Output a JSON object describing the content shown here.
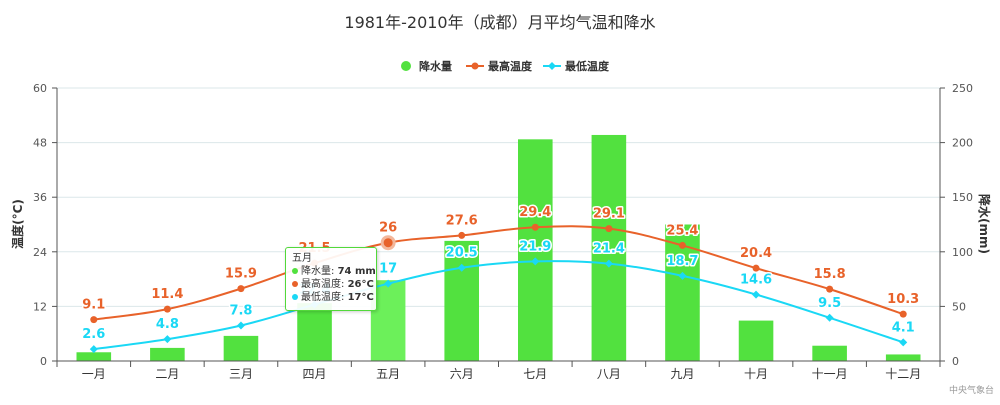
{
  "chart_data": {
    "type": "bar",
    "title": "1981年-2010年（成都）月平均气温和降水",
    "categories": [
      "一月",
      "二月",
      "三月",
      "四月",
      "五月",
      "六月",
      "七月",
      "八月",
      "九月",
      "十月",
      "十一月",
      "十二月"
    ],
    "series": [
      {
        "name": "降水量",
        "type": "bar",
        "axis": "right",
        "color": "#52e13f",
        "values": [
          8,
          12,
          23,
          53,
          74,
          110,
          203,
          207,
          125,
          37,
          14,
          6
        ]
      },
      {
        "name": "最高温度",
        "type": "line",
        "axis": "left",
        "color": "#e8622a",
        "values": [
          9.1,
          11.4,
          15.9,
          21.5,
          26,
          27.6,
          29.4,
          29.1,
          25.4,
          20.4,
          15.8,
          10.3
        ]
      },
      {
        "name": "最低温度",
        "type": "line",
        "axis": "left",
        "color": "#1ad8f5",
        "values": [
          2.6,
          4.8,
          7.8,
          12.4,
          17,
          20.5,
          21.9,
          21.4,
          18.7,
          14.6,
          9.5,
          4.1
        ]
      }
    ],
    "yleft": {
      "label": "温度(°C)",
      "ylim": [
        0,
        60
      ],
      "ticks": [
        "0",
        "12",
        "24",
        "36",
        "48",
        "60"
      ]
    },
    "yright": {
      "label": "降水(mm)",
      "ylim": [
        0,
        250
      ],
      "ticks": [
        "0",
        "50",
        "100",
        "150",
        "200",
        "250"
      ]
    },
    "legend_position": "top-center",
    "grid": true,
    "highlight_index": 4,
    "credit": "中央气象台"
  },
  "tooltip": {
    "header": "五月",
    "rows": [
      {
        "label": "降水量",
        "value": "74 mm",
        "color": "#52e13f"
      },
      {
        "label": "最高温度",
        "value": "26°C",
        "color": "#e8622a"
      },
      {
        "label": "最低温度",
        "value": "17°C",
        "color": "#1ad8f5"
      }
    ]
  }
}
